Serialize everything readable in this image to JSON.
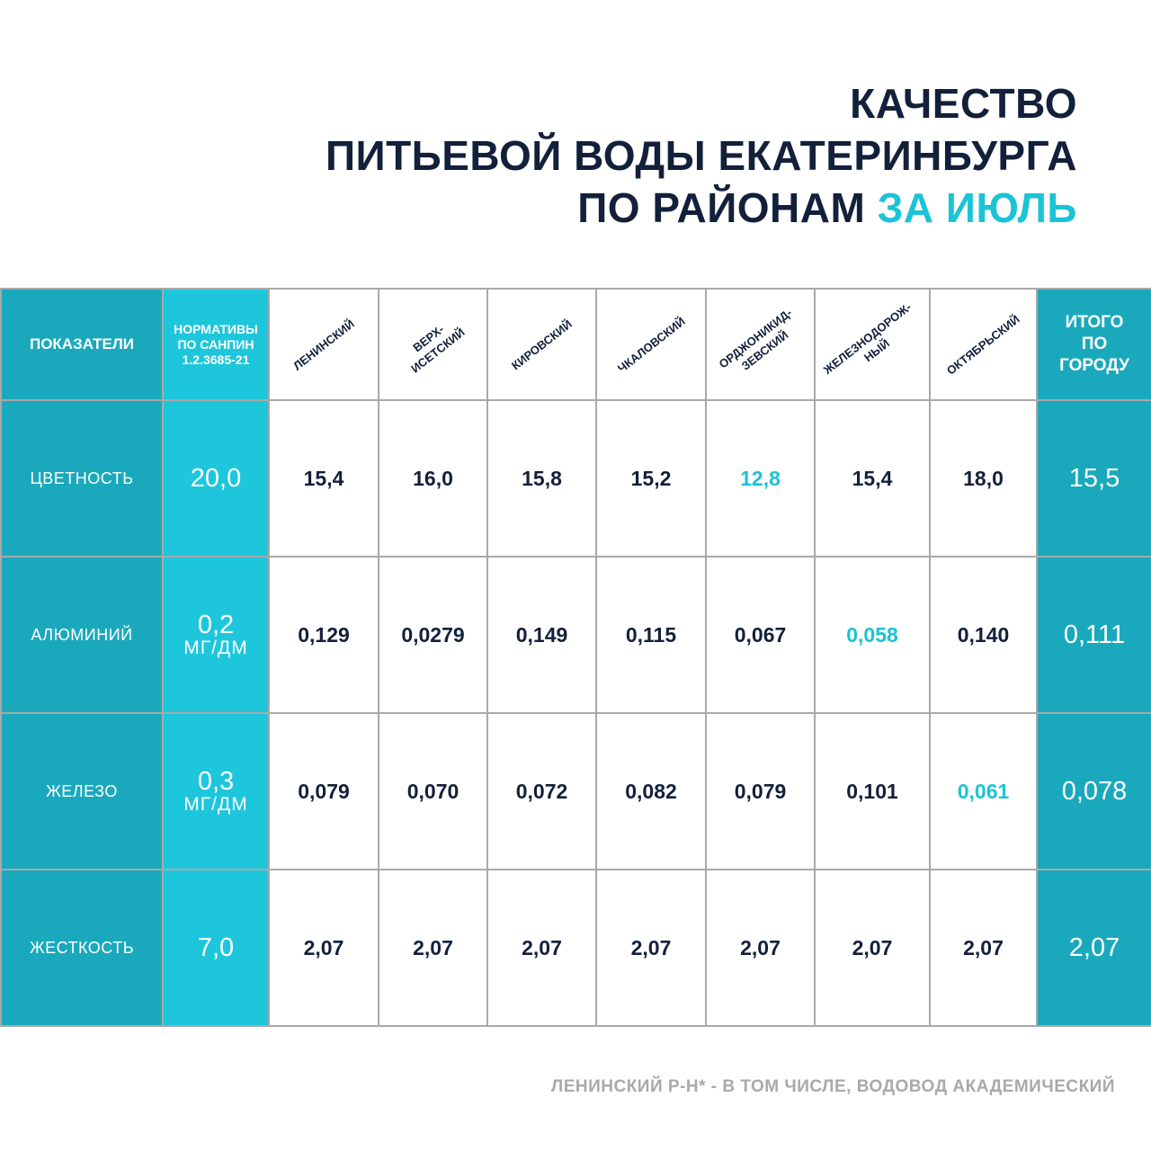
{
  "title": {
    "line1": "КАЧЕСТВО",
    "line2": "ПИТЬЕВОЙ ВОДЫ ЕКАТЕРИНБУРГА",
    "line3_main": "ПО РАЙОНАМ",
    "line3_accent": "ЗА ИЮЛЬ"
  },
  "colors": {
    "dark_text": "#13203a",
    "accent": "#1bc3d6",
    "label_column": "#1aa9bc",
    "norm_column": "#1ec6dc",
    "grid": "#a9a9a9"
  },
  "table": {
    "header": {
      "indicators": "ПОКАЗАТЕЛИ",
      "norm": [
        "НОРМАТИВЫ",
        "ПО САНПИН",
        "1.2.3685-21"
      ],
      "districts": [
        [
          "ЛЕНИНСКИЙ"
        ],
        [
          "ВЕРХ-",
          "ИСЕТСКИЙ"
        ],
        [
          "КИРОВСКИЙ"
        ],
        [
          "ЧКАЛОВСКИЙ"
        ],
        [
          "ОРДЖОНИКИД-",
          "ЗЕВСКИЙ"
        ],
        [
          "ЖЕЛЕЗНОДОРОЖ-",
          "НЫЙ"
        ],
        [
          "ОКТЯБРЬСКИЙ"
        ]
      ],
      "total": [
        "ИТОГО",
        "ПО",
        "ГОРОДУ"
      ]
    },
    "rows": [
      {
        "label": "ЦВЕТНОСТЬ",
        "norm_value": "20,0",
        "norm_unit": "",
        "values": [
          "15,4",
          "16,0",
          "15,8",
          "15,2",
          "12,8",
          "15,4",
          "18,0"
        ],
        "highlight_index": 4,
        "total": "15,5"
      },
      {
        "label": "АЛЮМИНИЙ",
        "norm_value": "0,2",
        "norm_unit": "МГ/ДМ",
        "values": [
          "0,129",
          "0,0279",
          "0,149",
          "0,115",
          "0,067",
          "0,058",
          "0,140"
        ],
        "highlight_index": 5,
        "total": "0,111"
      },
      {
        "label": "ЖЕЛЕЗО",
        "norm_value": "0,3",
        "norm_unit": "МГ/ДМ",
        "values": [
          "0,079",
          "0,070",
          "0,072",
          "0,082",
          "0,079",
          "0,101",
          "0,061"
        ],
        "highlight_index": 6,
        "total": "0,078"
      },
      {
        "label": "ЖЕСТКОСТЬ",
        "norm_value": "7,0",
        "norm_unit": "",
        "values": [
          "2,07",
          "2,07",
          "2,07",
          "2,07",
          "2,07",
          "2,07",
          "2,07"
        ],
        "highlight_index": -1,
        "total": "2,07"
      }
    ]
  },
  "chart_data": {
    "type": "table",
    "columns": [
      "ПОКАЗАТЕЛИ",
      "НОРМАТИВЫ ПО САНПИН 1.2.3685-21",
      "ЛЕНИНСКИЙ",
      "ВЕРХ-ИСЕТСКИЙ",
      "КИРОВСКИЙ",
      "ЧКАЛОВСКИЙ",
      "ОРДЖОНИКИДЗЕВСКИЙ",
      "ЖЕЛЕЗНОДОРОЖНЫЙ",
      "ОКТЯБРЬСКИЙ",
      "ИТОГО ПО ГОРОДУ"
    ],
    "rows": [
      [
        "ЦВЕТНОСТЬ",
        20.0,
        15.4,
        16.0,
        15.8,
        15.2,
        12.8,
        15.4,
        18.0,
        15.5
      ],
      [
        "АЛЮМИНИЙ",
        0.2,
        0.129,
        0.0279,
        0.149,
        0.115,
        0.067,
        0.058,
        0.14,
        0.111
      ],
      [
        "ЖЕЛЕЗО",
        0.3,
        0.079,
        0.07,
        0.072,
        0.082,
        0.079,
        0.101,
        0.061,
        0.078
      ],
      [
        "ЖЕСТКОСТЬ",
        7.0,
        2.07,
        2.07,
        2.07,
        2.07,
        2.07,
        2.07,
        2.07,
        2.07
      ]
    ]
  },
  "footer": "ЛЕНИНСКИЙ Р-Н* - В ТОМ ЧИСЛЕ, ВОДОВОД АКАДЕМИЧЕСКИЙ"
}
